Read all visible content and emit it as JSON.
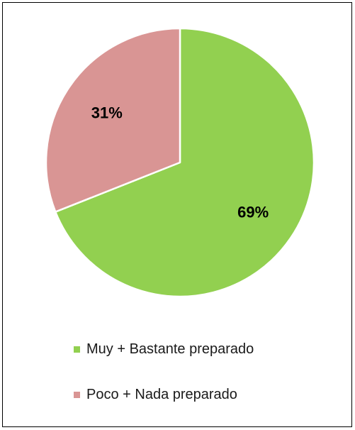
{
  "chart_data": {
    "type": "pie",
    "title": "",
    "slices": [
      {
        "name": "Muy + Bastante preparado",
        "value": 69,
        "label": "69%",
        "color": "#92d050"
      },
      {
        "name": "Poco + Nada preparado",
        "value": 31,
        "label": "31%",
        "color": "#d99594"
      }
    ],
    "start_angle_deg": 0,
    "direction": "clockwise",
    "legend_position": "bottom"
  }
}
